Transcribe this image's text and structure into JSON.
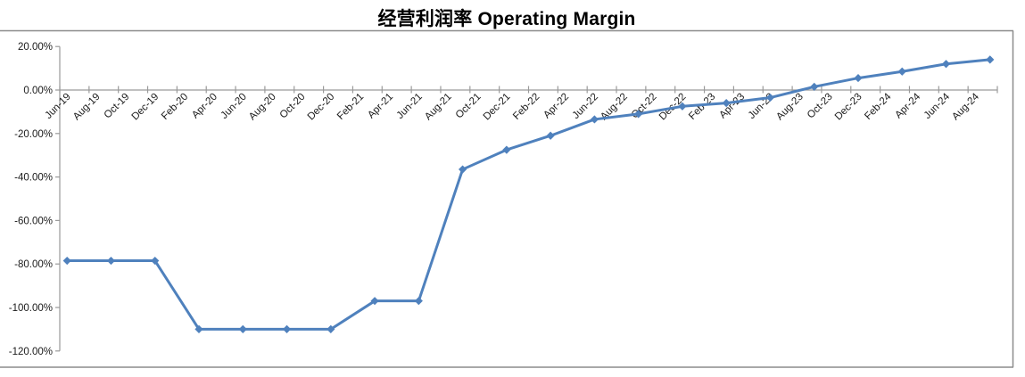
{
  "title": "经营利润率 Operating Margin",
  "frame": {
    "color": "#8c8c8c",
    "note_color": "gray top, bottom and right border lines around chart cell"
  },
  "axis_color": "#9a9a9a",
  "text_color": "#1a1a1a",
  "chart_data": {
    "type": "line",
    "title": "经营利润率 Operating Margin",
    "series_name": "Operating Margin",
    "series_color": "#4F81BD",
    "marker": "diamond",
    "grid": "off",
    "legend": "none",
    "ylim": [
      -120,
      20
    ],
    "y_tick_step": 20,
    "y_axis_labels": [
      "20.00%",
      "0.00%",
      "-20.00%",
      "-40.00%",
      "-60.00%",
      "-80.00%",
      "-100.00%",
      "-120.00%"
    ],
    "x": [
      "Jun-19",
      "Sep-19",
      "Dec-19",
      "Mar-20",
      "Jun-20",
      "Sep-20",
      "Dec-20",
      "Mar-21",
      "Jun-21",
      "Sep-21",
      "Dec-21",
      "Mar-22",
      "Jun-22",
      "Sep-22",
      "Dec-22",
      "Mar-23",
      "Jun-23",
      "Sep-23",
      "Dec-23",
      "Mar-24",
      "Jun-24",
      "Sep-24"
    ],
    "values": [
      -78.5,
      -78.5,
      -78.5,
      -110,
      -110,
      -110,
      -110,
      -97,
      -97,
      -36.5,
      -27.5,
      -21,
      -13.5,
      -11,
      -7.5,
      -6,
      -3.5,
      1.5,
      5.5,
      8.5,
      12,
      14
    ],
    "x_axis_labels": [
      "Jun-19",
      "Aug-19",
      "Oct-19",
      "Dec-19",
      "Feb-20",
      "Apr-20",
      "Jun-20",
      "Aug-20",
      "Oct-20",
      "Dec-20",
      "Feb-21",
      "Apr-21",
      "Jun-21",
      "Aug-21",
      "Oct-21",
      "Dec-21",
      "Feb-22",
      "Apr-22",
      "Jun-22",
      "Aug-22",
      "Oct-22",
      "Dec-22",
      "Feb-23",
      "Apr-23",
      "Jun-23",
      "Aug-23",
      "Oct-23",
      "Dec-23",
      "Feb-24",
      "Apr-24",
      "Jun-24",
      "Aug-24"
    ],
    "x_label_interval_months": 2,
    "data_interval_months": 3
  }
}
